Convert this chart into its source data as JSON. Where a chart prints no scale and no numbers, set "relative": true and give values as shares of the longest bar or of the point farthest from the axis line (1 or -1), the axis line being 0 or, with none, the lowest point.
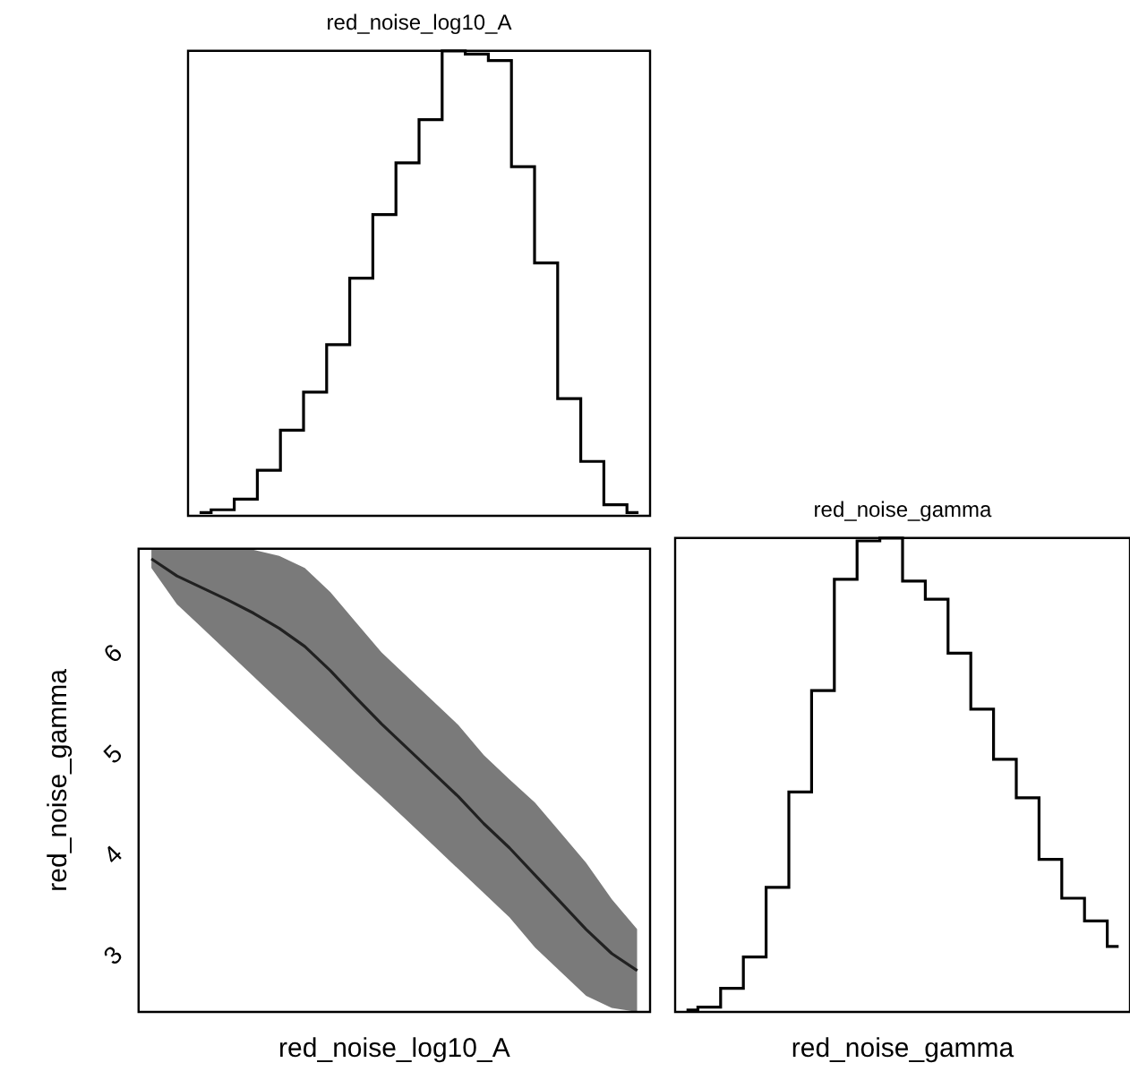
{
  "chart_data": [
    {
      "type": "step",
      "title": "red_noise_log10_A",
      "relative": true,
      "tick_labels": false,
      "categories": [
        null,
        null,
        null,
        null,
        null,
        null,
        null,
        null,
        null,
        null,
        null,
        null,
        null,
        null,
        null,
        null,
        null,
        null,
        null,
        null
      ],
      "values": [
        0.007,
        0.013,
        0.036,
        0.098,
        0.184,
        0.266,
        0.368,
        0.511,
        0.648,
        0.759,
        0.852,
        1,
        0.993,
        0.979,
        0.751,
        0.544,
        0.252,
        0.117,
        0.024,
        0.007
      ],
      "color": "#000000"
    },
    {
      "type": "line",
      "xlabel": "red_noise_log10_A",
      "ylabel": "red_noise_gamma",
      "tick_labels": "y",
      "categories": [
        null,
        null,
        null,
        null,
        null,
        null,
        null,
        null,
        null,
        null,
        null,
        null,
        null,
        null,
        null,
        null,
        null,
        null,
        null,
        null
      ],
      "ylim": [
        2.4,
        7.0
      ],
      "yticks": [
        3,
        4,
        5,
        6
      ],
      "series": [
        {
          "color": "#222222",
          "values": [
            6.9,
            6.73,
            6.61,
            6.49,
            6.36,
            6.21,
            6.03,
            5.79,
            5.52,
            5.26,
            5.02,
            4.78,
            4.54,
            4.27,
            4.03,
            3.76,
            3.49,
            3.22,
            2.98,
            2.81
          ],
          "lower": [
            6.81,
            6.45,
            6.21,
            5.97,
            5.73,
            5.49,
            5.25,
            5.01,
            4.77,
            4.54,
            4.3,
            4.06,
            3.82,
            3.58,
            3.34,
            3.04,
            2.8,
            2.56,
            2.44,
            2.4
          ],
          "upper": [
            7.0,
            7.0,
            7.0,
            7.0,
            6.99,
            6.93,
            6.81,
            6.57,
            6.27,
            5.97,
            5.73,
            5.49,
            5.25,
            4.95,
            4.71,
            4.48,
            4.18,
            3.88,
            3.52,
            3.22
          ]
        }
      ]
    },
    {
      "type": "step",
      "title": "red_noise_gamma",
      "xlabel": "red_noise_gamma",
      "relative": true,
      "tick_labels": false,
      "categories": [
        null,
        null,
        null,
        null,
        null,
        null,
        null,
        null,
        null,
        null,
        null,
        null,
        null,
        null,
        null,
        null,
        null,
        null,
        null,
        null
      ],
      "values": [
        0.004,
        0.01,
        0.05,
        0.116,
        0.263,
        0.464,
        0.678,
        0.913,
        0.994,
        1,
        0.909,
        0.871,
        0.757,
        0.639,
        0.533,
        0.452,
        0.322,
        0.24,
        0.192,
        0.138
      ],
      "color": "#000000"
    }
  ]
}
